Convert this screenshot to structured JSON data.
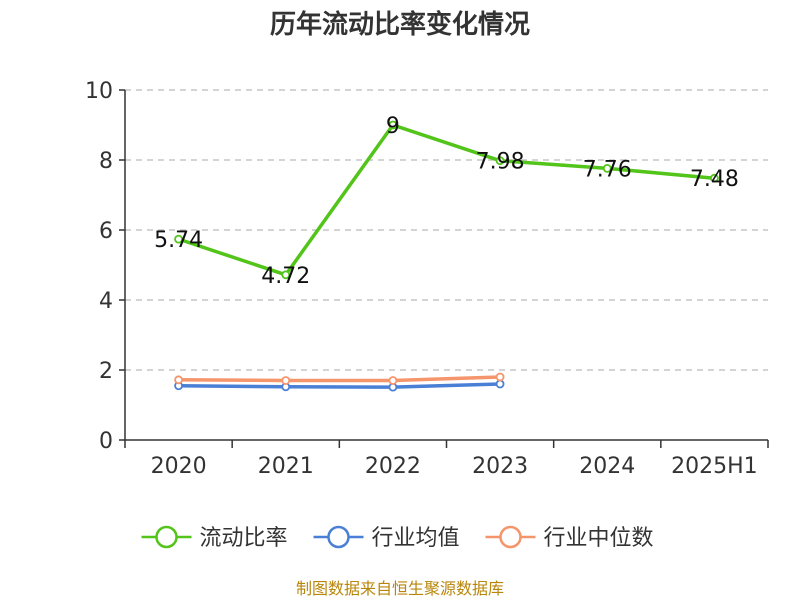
{
  "chart_data": {
    "type": "line",
    "title": "历年流动比率变化情况",
    "categories": [
      "2020",
      "2021",
      "2022",
      "2023",
      "2024",
      "2025H1"
    ],
    "ylim": [
      0,
      10
    ],
    "yticks": [
      0,
      2,
      4,
      6,
      8,
      10
    ],
    "grid": true,
    "legend_position": "bottom",
    "series": [
      {
        "name": "流动比率",
        "color": "#52c41a",
        "values": [
          5.74,
          4.72,
          9,
          7.98,
          7.76,
          7.48
        ],
        "labels": [
          "5.74",
          "4.72",
          "9",
          "7.98",
          "7.76",
          "7.48"
        ]
      },
      {
        "name": "行业均值",
        "color": "#4a7fd6",
        "values": [
          1.55,
          1.52,
          1.51,
          1.6,
          null,
          null
        ]
      },
      {
        "name": "行业中位数",
        "color": "#f5956b",
        "values": [
          1.72,
          1.7,
          1.7,
          1.8,
          null,
          null
        ]
      }
    ],
    "source": "制图数据来自恒生聚源数据库"
  }
}
